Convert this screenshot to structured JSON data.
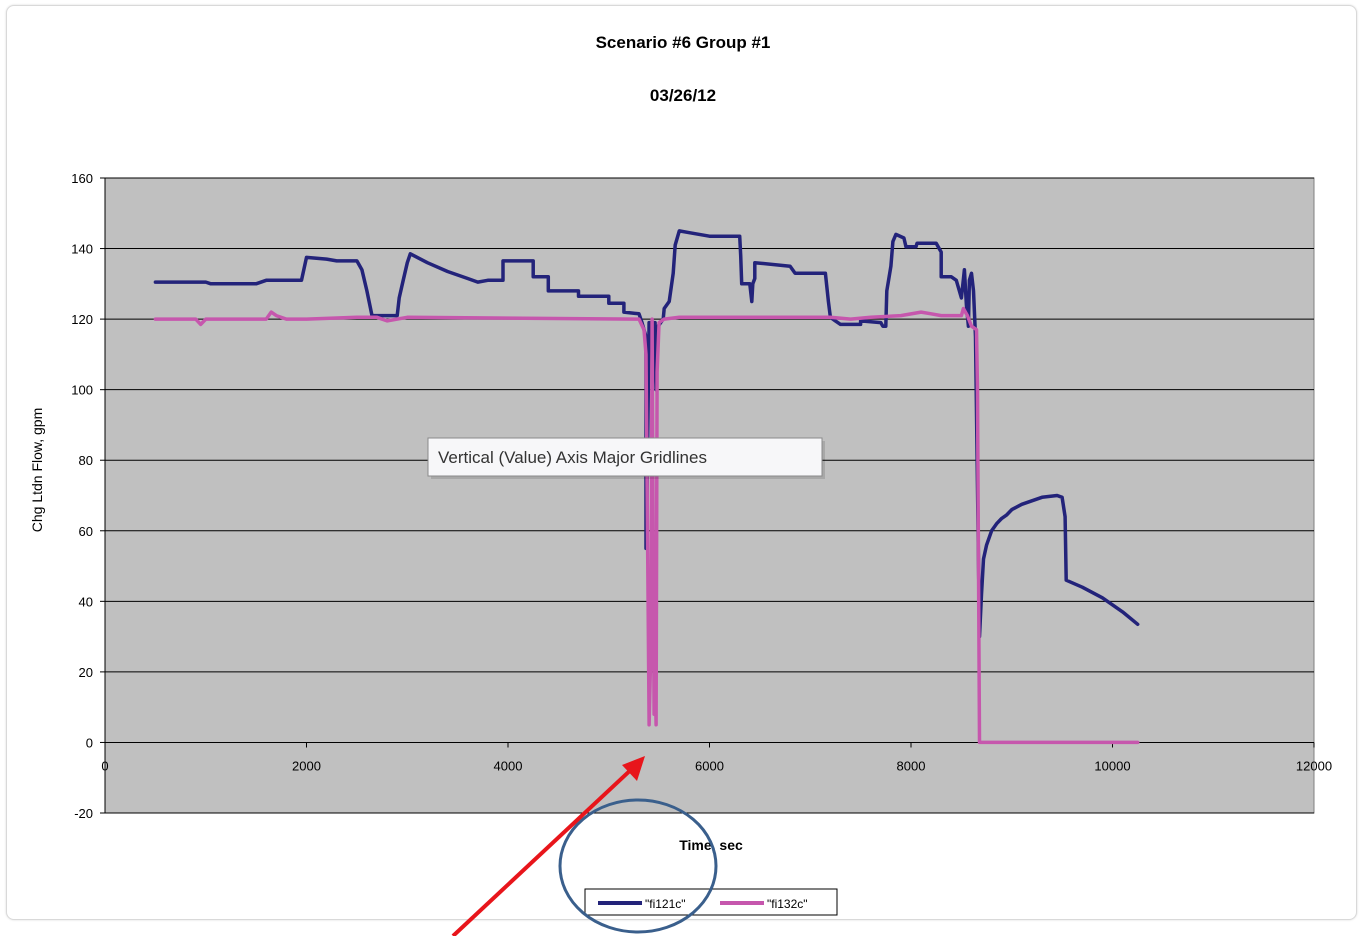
{
  "chart_data": {
    "type": "line",
    "title": "Scenario #6 Group  #1",
    "subtitle": "03/26/12",
    "xlabel": "Time, sec",
    "ylabel": "Chg Ltdn Flow, gpm",
    "xlim": [
      0,
      12000
    ],
    "ylim": [
      -20,
      160
    ],
    "xticks": [
      "0",
      "2000",
      "4000",
      "6000",
      "8000",
      "10000",
      "12000"
    ],
    "yticks": [
      "-20",
      "0",
      "20",
      "40",
      "60",
      "80",
      "100",
      "120",
      "140",
      "160"
    ],
    "grid": "horizontal major",
    "legend": "bottom",
    "series": [
      {
        "name": "\"fi121c\"",
        "color": "#23237a",
        "points": [
          [
            500,
            130.5
          ],
          [
            1000,
            130.5
          ],
          [
            1050,
            130
          ],
          [
            1500,
            130
          ],
          [
            1600,
            131
          ],
          [
            1950,
            131
          ],
          [
            2000,
            137.5
          ],
          [
            2200,
            137
          ],
          [
            2300,
            136.5
          ],
          [
            2500,
            136.5
          ],
          [
            2550,
            134
          ],
          [
            2600,
            128
          ],
          [
            2650,
            121
          ],
          [
            2900,
            121
          ],
          [
            2920,
            126
          ],
          [
            2960,
            131
          ],
          [
            3000,
            136
          ],
          [
            3030,
            138.5
          ],
          [
            3200,
            136
          ],
          [
            3400,
            133.5
          ],
          [
            3600,
            131.5
          ],
          [
            3700,
            130.5
          ],
          [
            3800,
            131
          ],
          [
            3950,
            131
          ],
          [
            3950,
            136.5
          ],
          [
            4250,
            136.5
          ],
          [
            4250,
            132
          ],
          [
            4400,
            132
          ],
          [
            4400,
            128
          ],
          [
            4700,
            128
          ],
          [
            4700,
            126.5
          ],
          [
            5000,
            126.5
          ],
          [
            5000,
            124.5
          ],
          [
            5150,
            124.5
          ],
          [
            5150,
            122
          ],
          [
            5300,
            121.5
          ],
          [
            5330,
            119
          ],
          [
            5350,
            117
          ],
          [
            5370,
            115
          ],
          [
            5370,
            55
          ],
          [
            5380,
            70
          ],
          [
            5400,
            119
          ],
          [
            5460,
            119
          ],
          [
            5460,
            107
          ],
          [
            5470,
            100
          ],
          [
            5490,
            118
          ],
          [
            5540,
            120
          ],
          [
            5550,
            123
          ],
          [
            5600,
            125
          ],
          [
            5640,
            133
          ],
          [
            5660,
            141
          ],
          [
            5700,
            145
          ],
          [
            5800,
            144.5
          ],
          [
            6000,
            143.5
          ],
          [
            6300,
            143.5
          ],
          [
            6310,
            138
          ],
          [
            6320,
            130
          ],
          [
            6400,
            130
          ],
          [
            6420,
            125
          ],
          [
            6430,
            130
          ],
          [
            6450,
            131.5
          ],
          [
            6450,
            136
          ],
          [
            6800,
            135
          ],
          [
            6850,
            133
          ],
          [
            7000,
            133
          ],
          [
            7150,
            133
          ],
          [
            7180,
            125
          ],
          [
            7200,
            120.5
          ],
          [
            7250,
            119.5
          ],
          [
            7300,
            118.5
          ],
          [
            7500,
            118.5
          ],
          [
            7500,
            119.5
          ],
          [
            7700,
            119
          ],
          [
            7720,
            118
          ],
          [
            7750,
            118
          ],
          [
            7760,
            128
          ],
          [
            7800,
            135
          ],
          [
            7820,
            142
          ],
          [
            7850,
            144
          ],
          [
            7930,
            143
          ],
          [
            7950,
            140.5
          ],
          [
            8050,
            140.5
          ],
          [
            8060,
            141.5
          ],
          [
            8150,
            141.5
          ],
          [
            8200,
            141.5
          ],
          [
            8250,
            141.5
          ],
          [
            8300,
            139
          ],
          [
            8300,
            132
          ],
          [
            8400,
            132
          ],
          [
            8450,
            131
          ],
          [
            8500,
            126
          ],
          [
            8530,
            134
          ],
          [
            8550,
            124
          ],
          [
            8570,
            118
          ],
          [
            8580,
            131
          ],
          [
            8600,
            133
          ],
          [
            8620,
            128
          ],
          [
            8640,
            115
          ],
          [
            8680,
            30
          ],
          [
            8700,
            42
          ],
          [
            8720,
            52
          ],
          [
            8750,
            56
          ],
          [
            8800,
            60
          ],
          [
            8850,
            62
          ],
          [
            8900,
            63.5
          ],
          [
            8950,
            64.5
          ],
          [
            9000,
            66
          ],
          [
            9100,
            67.5
          ],
          [
            9200,
            68.5
          ],
          [
            9300,
            69.5
          ],
          [
            9450,
            70
          ],
          [
            9500,
            69.5
          ],
          [
            9530,
            64
          ],
          [
            9540,
            46
          ],
          [
            9700,
            44
          ],
          [
            9900,
            41
          ],
          [
            10100,
            37
          ],
          [
            10250,
            33.5
          ]
        ]
      },
      {
        "name": "\"fi132c\"",
        "color": "#c657ad",
        "points": [
          [
            500,
            120
          ],
          [
            900,
            120
          ],
          [
            950,
            118.5
          ],
          [
            1000,
            120
          ],
          [
            1600,
            120
          ],
          [
            1650,
            122
          ],
          [
            1700,
            121
          ],
          [
            1800,
            120
          ],
          [
            2000,
            120
          ],
          [
            2500,
            120.5
          ],
          [
            2700,
            120.5
          ],
          [
            2800,
            119.5
          ],
          [
            3000,
            120.5
          ],
          [
            5300,
            120
          ],
          [
            5350,
            117
          ],
          [
            5370,
            110
          ],
          [
            5385,
            60
          ],
          [
            5400,
            5
          ],
          [
            5420,
            30
          ],
          [
            5430,
            120
          ],
          [
            5440,
            60
          ],
          [
            5450,
            8
          ],
          [
            5460,
            18
          ],
          [
            5470,
            5
          ],
          [
            5480,
            105
          ],
          [
            5500,
            119
          ],
          [
            5550,
            120
          ],
          [
            5700,
            120.5
          ],
          [
            7200,
            120.5
          ],
          [
            7400,
            120
          ],
          [
            7600,
            120.5
          ],
          [
            7900,
            121
          ],
          [
            8100,
            122
          ],
          [
            8200,
            121.5
          ],
          [
            8300,
            121
          ],
          [
            8500,
            121
          ],
          [
            8520,
            123
          ],
          [
            8560,
            121
          ],
          [
            8600,
            118
          ],
          [
            8650,
            117
          ],
          [
            8660,
            100
          ],
          [
            8680,
            0
          ],
          [
            10250,
            0
          ]
        ]
      }
    ]
  },
  "tooltip": {
    "text": "Vertical (Value) Axis Major Gridlines"
  },
  "annotation": {
    "circle_color": "#3a5f8c",
    "arrow_color": "#e8151b"
  }
}
